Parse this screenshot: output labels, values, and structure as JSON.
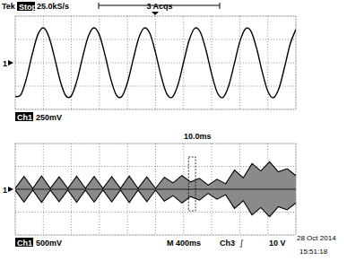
{
  "header": {
    "brand": "Tek",
    "state": "Stop",
    "rate": "25.0kS/s",
    "acqs": "3 Acqs"
  },
  "footer": {
    "trigger_source": "Ch3",
    "trigger_slope": "∫",
    "trigger_level": "10 V",
    "date": "28 Oct 2014",
    "time": "15:51:18"
  },
  "chart_data": [
    {
      "type": "line",
      "color": "#000000",
      "grid": true,
      "tick_labels": false,
      "xlim": [
        -50,
        50
      ],
      "ylim": [
        -500,
        500
      ],
      "xticks": [
        -50,
        -40,
        -30,
        -20,
        -10,
        0,
        10,
        20,
        30,
        40,
        50
      ],
      "yticks": [
        -500,
        -250,
        0,
        250,
        500
      ],
      "x": [
        -50,
        -48,
        -46,
        -44,
        -42,
        -40,
        -38,
        -36,
        -34,
        -32,
        -30,
        -28,
        -26,
        -24,
        -22,
        -20,
        -18,
        -16,
        -14,
        -12,
        -10,
        -8,
        -6,
        -4,
        -2,
        0,
        2,
        4,
        6,
        8,
        10,
        12,
        14,
        16,
        18,
        20,
        22,
        24,
        26,
        28,
        30,
        32,
        34,
        36,
        38,
        40,
        42,
        44,
        46,
        48,
        50
      ],
      "values": [
        -361,
        -343,
        -168,
        84,
        297,
        375,
        280,
        57,
        -192,
        -353,
        -353,
        -190,
        59,
        281,
        375,
        297,
        82,
        -170,
        -344,
        -360,
        -212,
        33,
        264,
        373,
        312,
        107,
        -146,
        -333,
        -367,
        -233,
        8,
        245,
        370,
        325,
        132,
        -122,
        -320,
        -371,
        -252,
        -18,
        225,
        364,
        337,
        156,
        -98,
        -306,
        -374,
        -271,
        -43,
        204,
        358
      ],
      "annotations": {
        "channel": "Ch1",
        "volts_per_div": "250mV",
        "time_per_div": "10.0ms",
        "marker": "1"
      }
    },
    {
      "type": "envelope",
      "color": "#8a8a8a",
      "grid": true,
      "tick_labels": false,
      "xlim": [
        -2000,
        2000
      ],
      "ylim": [
        -1000,
        1000
      ],
      "xticks": [
        -2000,
        -1600,
        -1200,
        -800,
        -400,
        0,
        400,
        800,
        1200,
        1600,
        2000
      ],
      "yticks": [
        -1000,
        -500,
        0,
        500,
        1000
      ],
      "x": [
        -2000,
        -1875,
        -1750,
        -1625,
        -1500,
        -1375,
        -1250,
        -1125,
        -1000,
        -875,
        -750,
        -625,
        -500,
        -375,
        -250,
        -125,
        0,
        125,
        250,
        375,
        500,
        625,
        750,
        875,
        1000,
        1125,
        1250,
        1375,
        1500,
        1625,
        1750,
        1875,
        2000
      ],
      "series": [
        {
          "color": "#000000",
          "values": [
            20,
            280,
            20,
            290,
            20,
            270,
            20,
            285,
            20,
            280,
            20,
            275,
            20,
            290,
            20,
            270,
            20,
            260,
            140,
            300,
            160,
            240,
            90,
            220,
            120,
            420,
            250,
            560,
            400,
            600,
            380,
            450,
            300
          ]
        },
        {
          "color": "#000000",
          "values": [
            -20,
            -280,
            -20,
            -290,
            -20,
            -270,
            -20,
            -285,
            -20,
            -280,
            -20,
            -275,
            -20,
            -290,
            -20,
            -270,
            -20,
            -260,
            -140,
            -300,
            -160,
            -240,
            -90,
            -220,
            -120,
            -420,
            -250,
            -560,
            -400,
            -600,
            -380,
            -450,
            -300
          ]
        }
      ],
      "zoom_range": [
        470,
        570
      ],
      "annotations": {
        "channel": "Ch1",
        "volts_per_div": "500mV",
        "time_per_div": "M 400ms",
        "marker": "1"
      }
    }
  ]
}
